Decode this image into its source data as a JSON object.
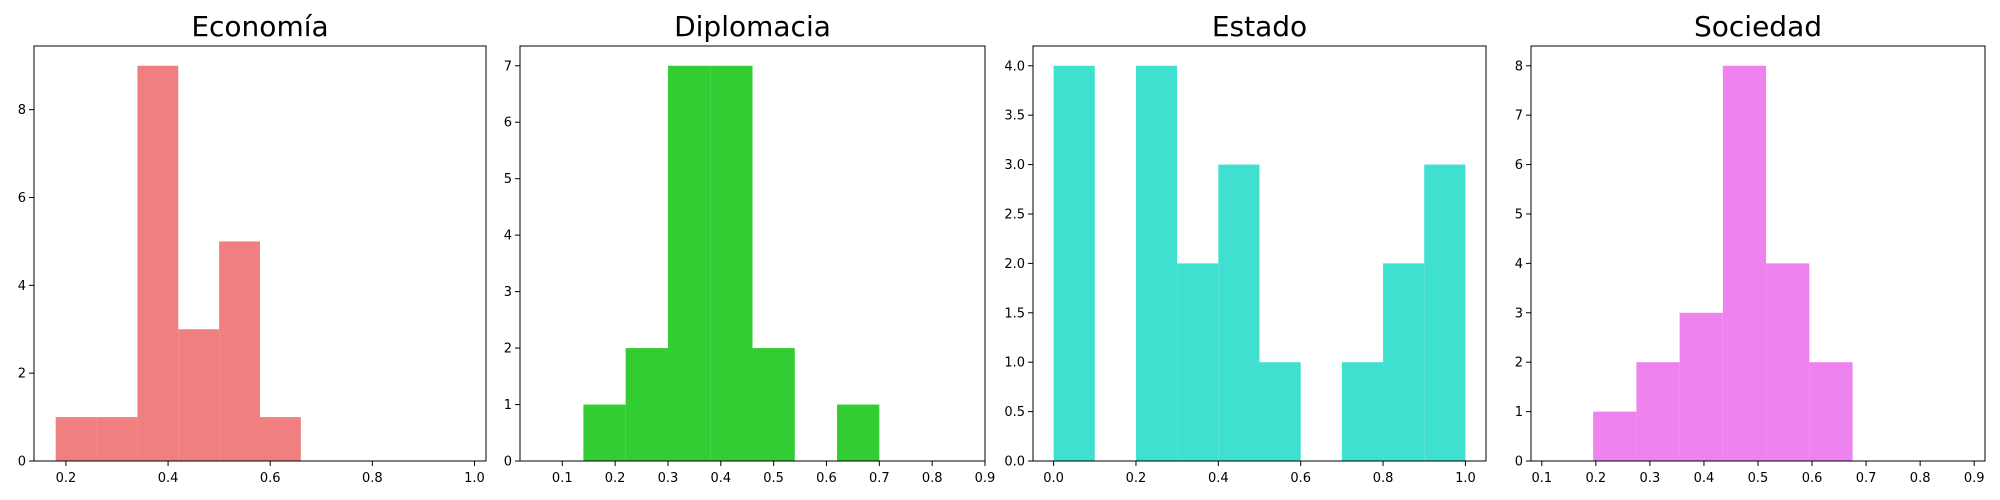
{
  "chart_data": [
    {
      "type": "bar",
      "title": "Economía",
      "color": "#f08080",
      "xlim": [
        0.1375,
        1.0225
      ],
      "ylim": [
        0,
        9.45
      ],
      "xticks": [
        0.2,
        0.4,
        0.6,
        0.8,
        1.0
      ],
      "xtick_labels": [
        "0.2",
        "0.4",
        "0.6",
        "0.8",
        "1.0"
      ],
      "yticks": [
        0,
        2,
        4,
        6,
        8
      ],
      "ytick_labels": [
        "0",
        "2",
        "4",
        "6",
        "8"
      ],
      "bins": [
        {
          "x0": 0.18,
          "x1": 0.26,
          "value": 1
        },
        {
          "x0": 0.26,
          "x1": 0.34,
          "value": 1
        },
        {
          "x0": 0.34,
          "x1": 0.42,
          "value": 9
        },
        {
          "x0": 0.42,
          "x1": 0.5,
          "value": 3
        },
        {
          "x0": 0.5,
          "x1": 0.58,
          "value": 5
        },
        {
          "x0": 0.58,
          "x1": 0.66,
          "value": 1
        }
      ]
    },
    {
      "type": "bar",
      "title": "Diplomacia",
      "color": "#32cd32",
      "xlim": [
        0.02,
        0.9
      ],
      "ylim": [
        0,
        7.35
      ],
      "xticks": [
        0.1,
        0.2,
        0.3,
        0.4,
        0.5,
        0.6,
        0.7,
        0.8,
        0.9
      ],
      "xtick_labels": [
        "0.1",
        "0.2",
        "0.3",
        "0.4",
        "0.5",
        "0.6",
        "0.7",
        "0.8",
        "0.9"
      ],
      "yticks": [
        0,
        1,
        2,
        3,
        4,
        5,
        6,
        7
      ],
      "ytick_labels": [
        "0",
        "1",
        "2",
        "3",
        "4",
        "5",
        "6",
        "7"
      ],
      "bins": [
        {
          "x0": 0.14,
          "x1": 0.22,
          "value": 1
        },
        {
          "x0": 0.22,
          "x1": 0.3,
          "value": 2
        },
        {
          "x0": 0.3,
          "x1": 0.38,
          "value": 7
        },
        {
          "x0": 0.38,
          "x1": 0.46,
          "value": 7
        },
        {
          "x0": 0.46,
          "x1": 0.54,
          "value": 2
        },
        {
          "x0": 0.62,
          "x1": 0.7,
          "value": 1
        }
      ]
    },
    {
      "type": "bar",
      "title": "Estado",
      "color": "#40e0d0",
      "xlim": [
        -0.05,
        1.05
      ],
      "ylim": [
        0,
        4.2
      ],
      "xticks": [
        0.0,
        0.2,
        0.4,
        0.6,
        0.8,
        1.0
      ],
      "xtick_labels": [
        "0.0",
        "0.2",
        "0.4",
        "0.6",
        "0.8",
        "1.0"
      ],
      "yticks": [
        0,
        0.5,
        1.0,
        1.5,
        2.0,
        2.5,
        3.0,
        3.5,
        4.0
      ],
      "ytick_labels": [
        "0.0",
        "0.5",
        "1.0",
        "1.5",
        "2.0",
        "2.5",
        "3.0",
        "3.5",
        "4.0"
      ],
      "bins": [
        {
          "x0": 0.0,
          "x1": 0.1,
          "value": 4
        },
        {
          "x0": 0.2,
          "x1": 0.3,
          "value": 4
        },
        {
          "x0": 0.3,
          "x1": 0.4,
          "value": 2
        },
        {
          "x0": 0.4,
          "x1": 0.5,
          "value": 3
        },
        {
          "x0": 0.5,
          "x1": 0.6,
          "value": 1
        },
        {
          "x0": 0.7,
          "x1": 0.8,
          "value": 1
        },
        {
          "x0": 0.8,
          "x1": 0.9,
          "value": 2
        },
        {
          "x0": 0.9,
          "x1": 1.0,
          "value": 3
        }
      ]
    },
    {
      "type": "bar",
      "title": "Sociedad",
      "color": "#ee82ee",
      "xlim": [
        0.08,
        0.92
      ],
      "ylim": [
        0,
        8.4
      ],
      "xticks": [
        0.1,
        0.2,
        0.3,
        0.4,
        0.5,
        0.6,
        0.7,
        0.8,
        0.9
      ],
      "xtick_labels": [
        "0.1",
        "0.2",
        "0.3",
        "0.4",
        "0.5",
        "0.6",
        "0.7",
        "0.8",
        "0.9"
      ],
      "yticks": [
        0,
        1,
        2,
        3,
        4,
        5,
        6,
        7,
        8
      ],
      "ytick_labels": [
        "0",
        "1",
        "2",
        "3",
        "4",
        "5",
        "6",
        "7",
        "8"
      ],
      "bins": [
        {
          "x0": 0.195,
          "x1": 0.275,
          "value": 1
        },
        {
          "x0": 0.275,
          "x1": 0.355,
          "value": 2
        },
        {
          "x0": 0.355,
          "x1": 0.435,
          "value": 3
        },
        {
          "x0": 0.435,
          "x1": 0.515,
          "value": 8
        },
        {
          "x0": 0.515,
          "x1": 0.595,
          "value": 4
        },
        {
          "x0": 0.595,
          "x1": 0.675,
          "value": 2
        }
      ]
    }
  ]
}
